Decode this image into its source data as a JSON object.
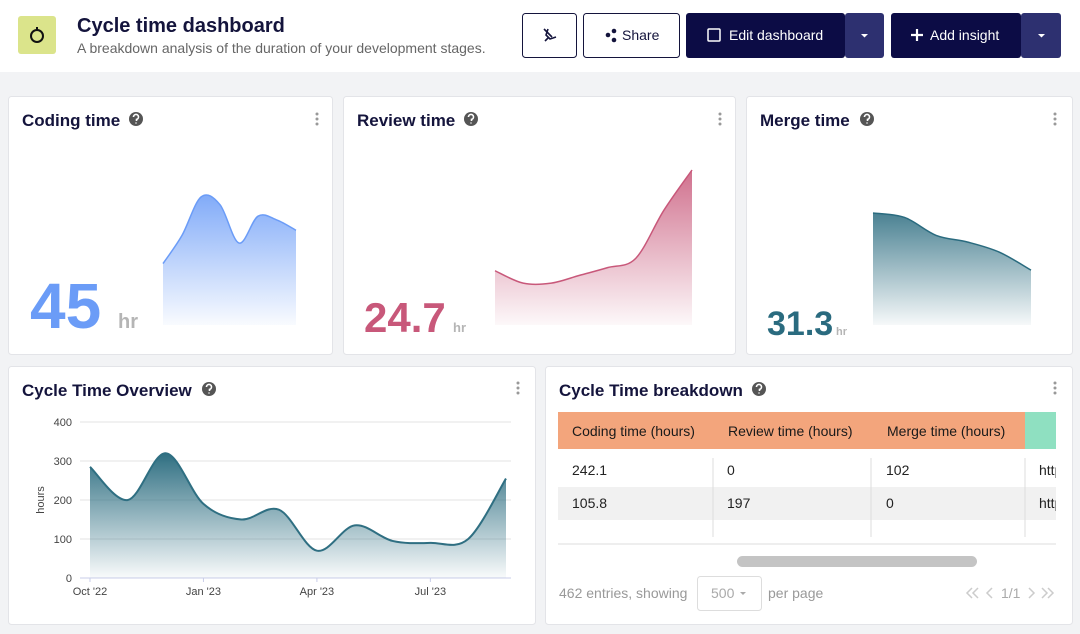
{
  "header": {
    "title": "Cycle time dashboard",
    "subtitle": "A breakdown analysis of the duration of your development stages."
  },
  "toolbar": {
    "share": "Share",
    "edit": "Edit dashboard",
    "add": "Add insight"
  },
  "cards": [
    {
      "title": "Coding time",
      "value": 45,
      "unit": "hr",
      "color": "#6b9cf7",
      "ylim": [
        0,
        100
      ],
      "values": [
        48,
        70,
        100,
        94,
        64,
        85,
        82,
        74
      ]
    },
    {
      "title": "Review time",
      "value": 24.7,
      "unit": "hr",
      "color": "#c8587a",
      "ylim": [
        0,
        100
      ],
      "values": [
        35,
        27,
        27,
        32,
        37,
        43,
        74,
        100
      ]
    },
    {
      "title": "Merge time",
      "value": 31.3,
      "unit": "hr",
      "color": "#2a6b7f",
      "ylim": [
        0,
        100
      ],
      "values": [
        100,
        96,
        80,
        74,
        65,
        49
      ]
    }
  ],
  "overview": {
    "type": "area",
    "title": "Cycle Time Overview",
    "ylabel": "hours",
    "categories": [
      "Oct '22",
      null,
      null,
      "Jan '23",
      null,
      null,
      "Apr '23",
      null,
      null,
      "Jul '23",
      null,
      null
    ],
    "values": [
      285,
      200,
      320,
      190,
      150,
      175,
      70,
      135,
      95,
      90,
      100,
      255
    ],
    "color": "#2f6f82",
    "ylim": [
      0,
      400
    ],
    "yticks": [
      0,
      100,
      200,
      300,
      400
    ],
    "grid": true
  },
  "breakdown": {
    "title": "Cycle Time breakdown",
    "columns": [
      "Coding time (hours)",
      "Review time (hours)",
      "Merge time (hours)"
    ],
    "rows": [
      [
        242.1,
        0,
        102,
        "http"
      ],
      [
        105.8,
        197,
        0,
        "http"
      ]
    ],
    "footer": {
      "entries": "462 entries, showing",
      "page_size": "500",
      "per_page": "per page",
      "pages": "1/1"
    }
  }
}
